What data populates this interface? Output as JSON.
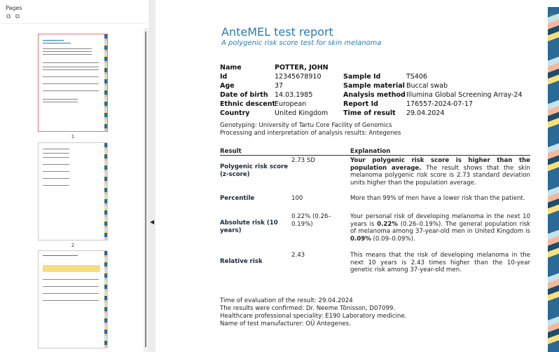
{
  "sidebar": {
    "title": "Pages",
    "tools": [
      "zoom-out-icon",
      "zoom-in-icon"
    ],
    "pages": [
      "1",
      "2",
      "3"
    ],
    "selected_page": "1"
  },
  "report": {
    "title": "AnteMEL test report",
    "subtitle": "A polygenic risk score test for skin melanoma",
    "patient": [
      {
        "label": "Name",
        "value": "POTTER, JOHN"
      },
      {
        "label": "Id",
        "value": "12345678910"
      },
      {
        "label": "Age",
        "value": "37"
      },
      {
        "label": "Date of birth",
        "value": "14.03.1985"
      },
      {
        "label": "Ethnic descent",
        "value": "European"
      },
      {
        "label": "Country",
        "value": "United Kingdom"
      }
    ],
    "sample": [
      {
        "label": "Sample Id",
        "value": "TS406"
      },
      {
        "label": "Sample material",
        "value": "Buccal swab"
      },
      {
        "label": "Analysis method",
        "value": "Illumina Global Screening Array-24"
      },
      {
        "label": "Report Id",
        "value": "176557-2024-07-17"
      },
      {
        "label": "Time of result",
        "value": "29.04.2024"
      }
    ],
    "genotyping": "Genotyping: University of Tartu Core Facility of Genomics",
    "processing": "Processing and interpretation of analysis results: Antegenes",
    "table": {
      "headers": [
        "Result",
        "Explanation"
      ],
      "rows": [
        {
          "name": "Polygenic risk score (z-score)",
          "value": "2.73 SD",
          "bold": "Your polygenic risk score is higher than the population average.",
          "text": " The result shows that the skin melanoma polygenic risk score is 2.73 standard deviation units higher than the population average."
        },
        {
          "name": "Percentile",
          "value": "100",
          "text": "More than 99% of men have a lower risk than the patient."
        },
        {
          "name": "Absolute risk (10 years)",
          "value": "0.22% (0.26–0.19%)",
          "t1": "Your personal risk of developing melanoma in the next 10 years is ",
          "b1": "0.22%",
          "t2": " (0.26–0.19%). The general population risk of melanoma among 37-year-old men in United Kingdom is ",
          "b2": "0.09%",
          "t3": " (0.09–0.09%)."
        },
        {
          "name": "Relative risk",
          "value": "2.43",
          "text": "This means that the risk of developing melanoma in the next 10 years is 2.43 times higher than the 10-year genetic risk among 37-year-old men."
        }
      ]
    },
    "footer": [
      "Time of evaluation of the result: 29.04.2024",
      "The results were confirmed: Dr. Neeme Tõnisson, D07099.",
      "Healthcare professional speciality: E190 Laboratory medicine.",
      "Name of test manufacturer: OÜ Antegenes."
    ]
  }
}
